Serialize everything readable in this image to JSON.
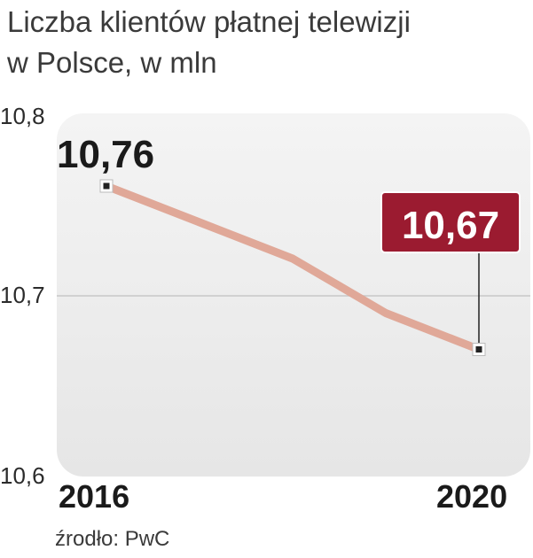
{
  "title_lines": [
    "Liczba klientów płatnej telewizji",
    "w Polsce, w mln"
  ],
  "source": "źrodło: PwC",
  "colors": {
    "line": "#e0a898",
    "accent_box": "#9b1b30",
    "plot_bg": "#ededed"
  },
  "chart_data": {
    "type": "line",
    "title": "Liczba klientów płatnej telewizji w Polsce, w mln",
    "x": [
      2016,
      2017,
      2018,
      2019,
      2020
    ],
    "x_tick_labels": [
      "2016",
      "2020"
    ],
    "series": [
      {
        "values": [
          10.76,
          10.74,
          10.72,
          10.69,
          10.67
        ]
      }
    ],
    "ylim": [
      10.6,
      10.8
    ],
    "y_ticks": [
      "10,8",
      "10,7",
      "10,6"
    ],
    "grid": true,
    "annotations": [
      {
        "x": 2016,
        "y": 10.76,
        "label": "10,76"
      },
      {
        "x": 2020,
        "y": 10.67,
        "label": "10,67"
      }
    ]
  }
}
